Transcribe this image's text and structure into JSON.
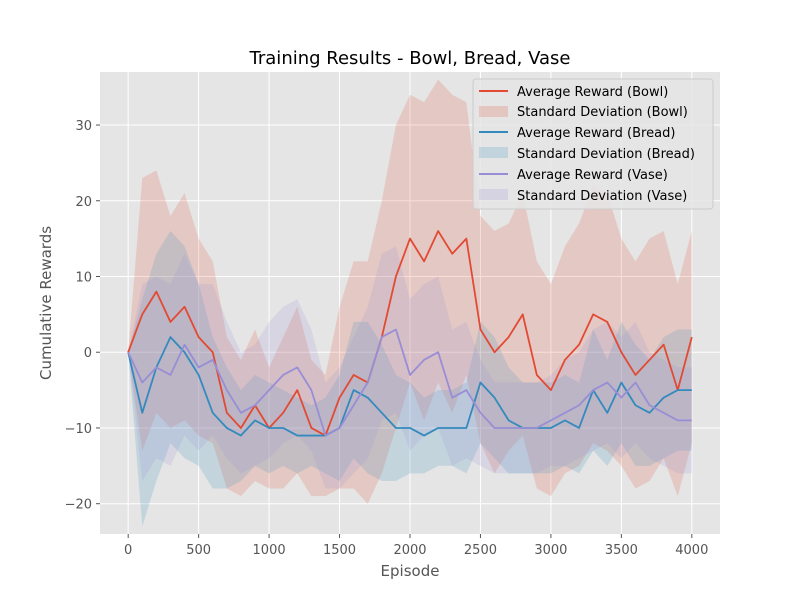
{
  "chart_data": {
    "type": "line",
    "title": "Training Results - Bowl, Bread, Vase",
    "xlabel": "Episode",
    "ylabel": "Cumulative Rewards",
    "xlim": [
      -200,
      4200
    ],
    "ylim": [
      -24,
      37
    ],
    "xticks": [
      0,
      500,
      1000,
      1500,
      2000,
      2500,
      3000,
      3500,
      4000
    ],
    "yticks": [
      -20,
      -10,
      0,
      10,
      20,
      30
    ],
    "grid": true,
    "legend_position": "top-right",
    "style": "ggplot",
    "colors": {
      "Bowl": "#E24A33",
      "Bread": "#348ABD",
      "Vase": "#988ED5"
    },
    "legend": [
      "Average Reward (Bowl)",
      "Standard Deviation (Bowl)",
      "Average Reward (Bread)",
      "Standard Deviation (Bread)",
      "Average Reward (Vase)",
      "Standard Deviation (Vase)"
    ],
    "series": [
      {
        "name": "Average Reward (Bowl)",
        "color": "#E24A33",
        "x": [
          0,
          100,
          200,
          300,
          400,
          500,
          600,
          700,
          800,
          900,
          1000,
          1100,
          1200,
          1300,
          1400,
          1500,
          1600,
          1700,
          1800,
          1900,
          2000,
          2100,
          2200,
          2300,
          2400,
          2500,
          2600,
          2700,
          2800,
          2900,
          3000,
          3100,
          3200,
          3300,
          3400,
          3500,
          3600,
          3700,
          3800,
          3900,
          4000
        ],
        "y": [
          0,
          5,
          8,
          4,
          6,
          2,
          0,
          -8,
          -10,
          -7,
          -10,
          -8,
          -5,
          -10,
          -11,
          -6,
          -3,
          -4,
          2,
          10,
          15,
          12,
          16,
          13,
          15,
          3,
          0,
          2,
          5,
          -3,
          -5,
          -1,
          1,
          5,
          4,
          0,
          -3,
          -1,
          1,
          -5,
          2
        ],
        "std": [
          0,
          18,
          16,
          14,
          15,
          13,
          12,
          10,
          9,
          10,
          8,
          10,
          11,
          9,
          8,
          12,
          15,
          16,
          18,
          20,
          19,
          21,
          20,
          21,
          18,
          15,
          16,
          15,
          16,
          15,
          14,
          15,
          16,
          17,
          17,
          15,
          15,
          16,
          15,
          14,
          14
        ]
      },
      {
        "name": "Average Reward (Bread)",
        "color": "#348ABD",
        "x": [
          0,
          100,
          200,
          300,
          400,
          500,
          600,
          700,
          800,
          900,
          1000,
          1100,
          1200,
          1300,
          1400,
          1500,
          1600,
          1700,
          1800,
          1900,
          2000,
          2100,
          2200,
          2300,
          2400,
          2500,
          2600,
          2700,
          2800,
          2900,
          3000,
          3100,
          3200,
          3300,
          3400,
          3500,
          3600,
          3700,
          3800,
          3900,
          4000
        ],
        "y": [
          0,
          -8,
          -2,
          2,
          0,
          -3,
          -8,
          -10,
          -11,
          -9,
          -10,
          -10,
          -11,
          -11,
          -11,
          -10,
          -5,
          -6,
          -8,
          -10,
          -10,
          -11,
          -10,
          -10,
          -10,
          -4,
          -6,
          -9,
          -10,
          -10,
          -10,
          -9,
          -10,
          -5,
          -8,
          -4,
          -7,
          -8,
          -6,
          -5,
          -5
        ],
        "std": [
          0,
          15,
          15,
          14,
          14,
          12,
          10,
          8,
          6,
          6,
          6,
          5,
          5,
          4,
          5,
          7,
          9,
          10,
          9,
          7,
          6,
          5,
          5,
          5,
          6,
          8,
          8,
          7,
          6,
          6,
          6,
          6,
          6,
          8,
          7,
          8,
          8,
          7,
          8,
          8,
          8
        ]
      },
      {
        "name": "Average Reward (Vase)",
        "color": "#988ED5",
        "x": [
          0,
          100,
          200,
          300,
          400,
          500,
          600,
          700,
          800,
          900,
          1000,
          1100,
          1200,
          1300,
          1400,
          1500,
          1600,
          1700,
          1800,
          1900,
          2000,
          2100,
          2200,
          2300,
          2400,
          2500,
          2600,
          2700,
          2800,
          2900,
          3000,
          3100,
          3200,
          3300,
          3400,
          3500,
          3600,
          3700,
          3800,
          3900,
          4000
        ],
        "y": [
          0,
          -4,
          -2,
          -3,
          1,
          -2,
          -1,
          -5,
          -8,
          -7,
          -5,
          -3,
          -2,
          -5,
          -11,
          -10,
          -7,
          -4,
          2,
          3,
          -3,
          -1,
          0,
          -6,
          -5,
          -8,
          -10,
          -10,
          -10,
          -10,
          -9,
          -8,
          -7,
          -5,
          -4,
          -6,
          -4,
          -7,
          -8,
          -9,
          -9
        ],
        "std": [
          0,
          13,
          12,
          12,
          12,
          11,
          10,
          9,
          8,
          8,
          9,
          9,
          9,
          8,
          7,
          8,
          9,
          10,
          11,
          11,
          10,
          10,
          10,
          9,
          9,
          7,
          6,
          6,
          6,
          6,
          6,
          7,
          7,
          8,
          8,
          8,
          8,
          7,
          7,
          7,
          7
        ]
      }
    ]
  }
}
